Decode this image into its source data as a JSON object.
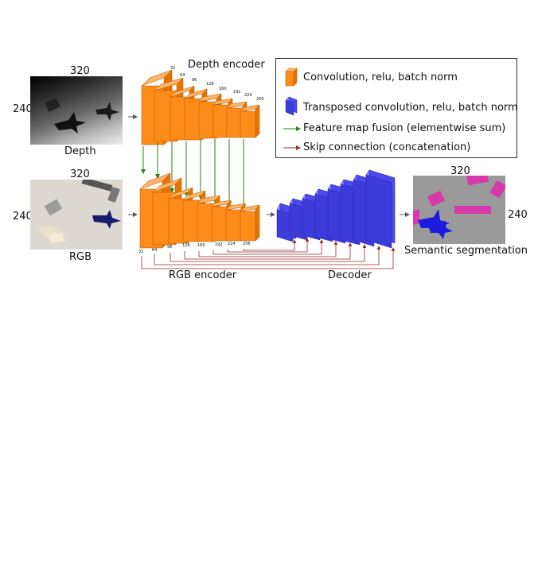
{
  "titles": {
    "depth_encoder": "Depth encoder",
    "rgb_encoder": "RGB encoder",
    "decoder": "Decoder"
  },
  "inputs": {
    "depth": {
      "label": "Depth",
      "width": "320",
      "height": "240"
    },
    "rgb": {
      "label": "RGB",
      "width": "320",
      "height": "240"
    }
  },
  "output": {
    "label": "Semantic segmentation",
    "width": "320",
    "height": "240"
  },
  "depth_channels": [
    "32",
    "64",
    "96",
    "128",
    "160",
    "192",
    "224",
    "256"
  ],
  "rgb_channels": [
    "32",
    "64",
    "96",
    "128",
    "160",
    "192",
    "224",
    "256"
  ],
  "legend": {
    "conv": "Convolution, relu, batch norm",
    "tconv": "Transposed convolution, relu, batch norm",
    "fusion": "Feature map fusion (elementwise sum)",
    "skip": "Skip connection (concatenation)"
  },
  "colors": {
    "conv": "#ff8c1a",
    "tconv": "#4a4af0",
    "fusion_arrow": "#2e7d1f",
    "skip_arrow": "#9b2a2a"
  }
}
